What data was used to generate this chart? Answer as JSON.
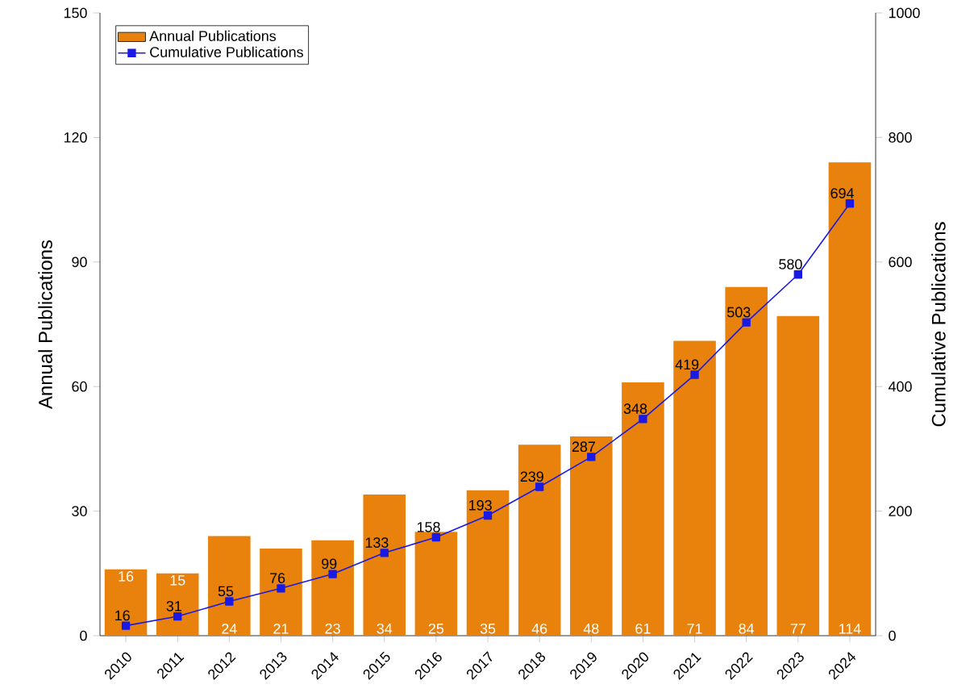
{
  "chart_data": {
    "type": "bar",
    "ylabel": "Annual Publications",
    "y2label": "Cumulative Publications",
    "categories": [
      "2010",
      "2011",
      "2012",
      "2013",
      "2014",
      "2015",
      "2016",
      "2017",
      "2018",
      "2019",
      "2020",
      "2021",
      "2022",
      "2023",
      "2024"
    ],
    "series": [
      {
        "name": "Annual Publications",
        "type": "bar",
        "color": "#e8820c",
        "values": [
          16,
          15,
          24,
          21,
          23,
          34,
          25,
          35,
          46,
          48,
          61,
          71,
          84,
          77,
          114
        ]
      },
      {
        "name": "Cumulative Publications",
        "type": "line",
        "axis": "y2",
        "color": "#1a1ae6",
        "marker": "square",
        "values": [
          16,
          31,
          55,
          76,
          99,
          133,
          158,
          193,
          239,
          287,
          348,
          419,
          503,
          580,
          694
        ]
      }
    ],
    "ylim": [
      0,
      150
    ],
    "yticks": [
      0,
      30,
      60,
      90,
      120,
      150
    ],
    "y2lim": [
      0,
      1000
    ],
    "y2ticks": [
      0,
      200,
      400,
      600,
      800,
      1000
    ],
    "data_labels": true,
    "legend": "top left",
    "grid": false
  }
}
